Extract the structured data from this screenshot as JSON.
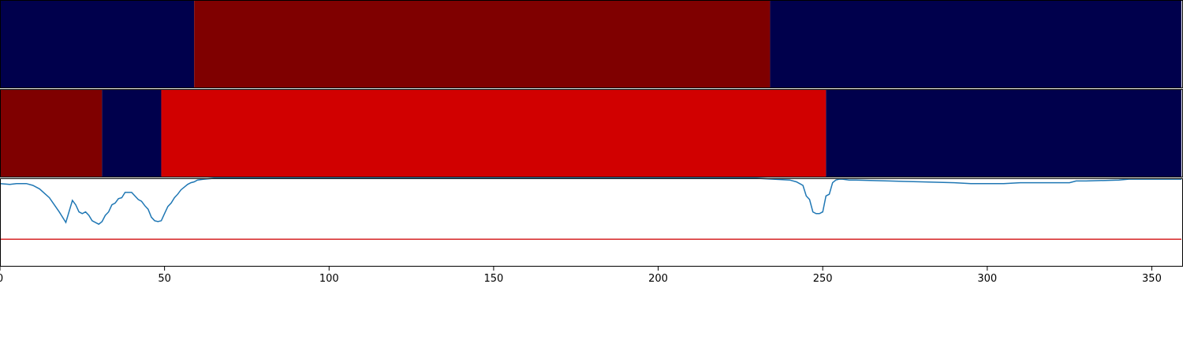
{
  "chart_data": {
    "type": "heatmap",
    "xlim": [
      0,
      359
    ],
    "x_ticks": [
      0,
      50,
      100,
      150,
      200,
      250,
      300,
      350
    ],
    "x_tick_labels": [
      "0",
      "50",
      "100",
      "150",
      "200",
      "250",
      "300",
      "350"
    ],
    "grid": false,
    "tracks": [
      {
        "segments": [
          {
            "start": 0,
            "end": 59,
            "color": "#00004c"
          },
          {
            "start": 59,
            "end": 234,
            "color": "#7f0000"
          },
          {
            "start": 234,
            "end": 359,
            "color": "#00004c"
          }
        ]
      },
      {
        "segments": [
          {
            "start": 0,
            "end": 31,
            "color": "#7f0000"
          },
          {
            "start": 31,
            "end": 49,
            "color": "#00004c"
          },
          {
            "start": 49,
            "end": 251,
            "color": "#d10000"
          },
          {
            "start": 251,
            "end": 359,
            "color": "#00004c"
          }
        ]
      }
    ],
    "line_panel": {
      "ylim": [
        0,
        1
      ],
      "threshold": {
        "y": 0.31,
        "color": "#d62728"
      },
      "series": [
        {
          "color": "#1f77b4",
          "x": [
            0,
            3,
            5,
            8,
            10,
            12,
            15,
            18,
            20,
            22,
            23,
            24,
            25,
            26,
            27,
            28,
            30,
            31,
            32,
            33,
            34,
            35,
            36,
            37,
            38,
            39,
            40,
            42,
            43,
            44,
            45,
            46,
            47,
            48,
            49,
            50,
            51,
            52,
            53,
            54,
            55,
            56,
            57,
            58,
            59,
            60,
            62,
            65,
            70,
            100,
            150,
            200,
            230,
            240,
            242,
            244,
            245,
            246,
            247,
            248,
            249,
            250,
            251,
            252,
            253,
            254,
            255,
            256,
            258,
            260,
            270,
            280,
            290,
            295,
            300,
            305,
            310,
            315,
            320,
            325,
            326,
            327,
            330,
            340,
            343,
            345,
            350,
            355,
            359
          ],
          "y": [
            0.94,
            0.93,
            0.94,
            0.94,
            0.92,
            0.88,
            0.78,
            0.62,
            0.5,
            0.75,
            0.7,
            0.62,
            0.6,
            0.62,
            0.58,
            0.52,
            0.48,
            0.51,
            0.58,
            0.62,
            0.7,
            0.72,
            0.77,
            0.78,
            0.84,
            0.84,
            0.84,
            0.76,
            0.74,
            0.69,
            0.65,
            0.56,
            0.52,
            0.51,
            0.52,
            0.6,
            0.68,
            0.72,
            0.78,
            0.82,
            0.87,
            0.9,
            0.93,
            0.95,
            0.96,
            0.98,
            0.99,
            1.0,
            1.0,
            1.0,
            1.0,
            1.0,
            1.0,
            0.98,
            0.96,
            0.92,
            0.8,
            0.76,
            0.62,
            0.6,
            0.6,
            0.62,
            0.8,
            0.82,
            0.95,
            0.98,
            0.99,
            0.99,
            0.98,
            0.98,
            0.97,
            0.96,
            0.95,
            0.94,
            0.94,
            0.94,
            0.95,
            0.95,
            0.95,
            0.95,
            0.96,
            0.97,
            0.97,
            0.98,
            0.99,
            0.99,
            0.99,
            0.99,
            0.99
          ]
        }
      ]
    }
  }
}
